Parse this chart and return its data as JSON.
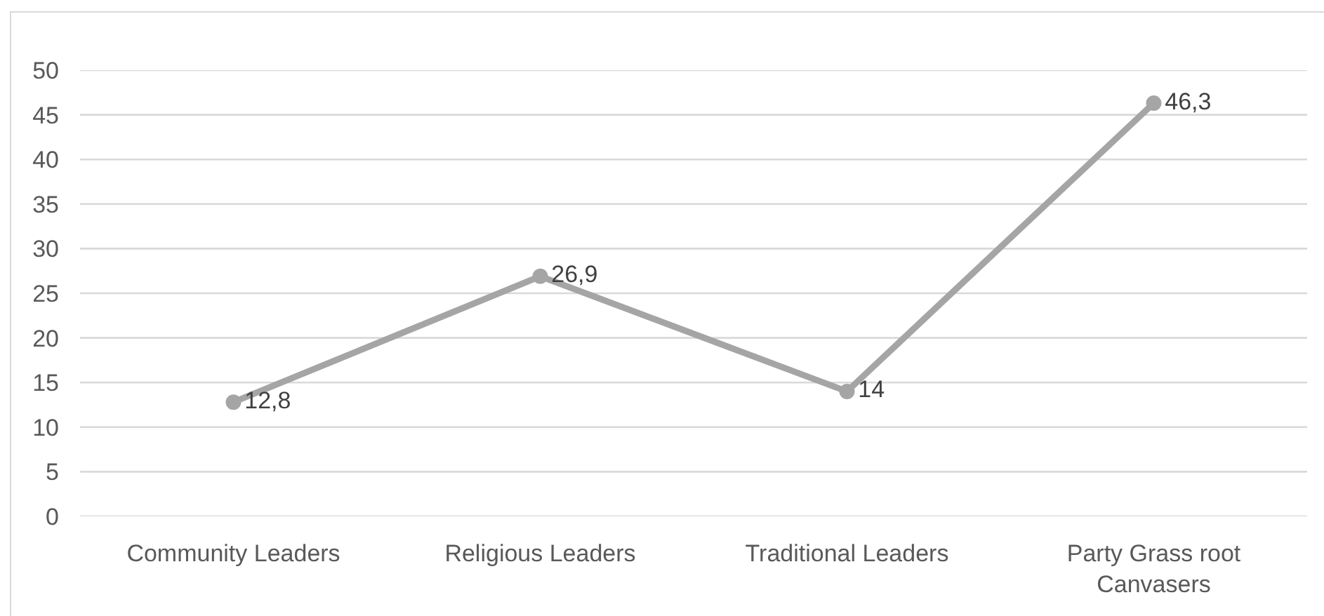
{
  "chart_data": {
    "type": "line",
    "categories": [
      "Community Leaders",
      "Religious Leaders",
      "Traditional Leaders",
      "Party Grass root Canvasers"
    ],
    "values": [
      12.8,
      26.9,
      14,
      46.3
    ],
    "value_labels": [
      "12,8",
      "26,9",
      "14",
      "46,3"
    ],
    "color": "#a5a5a5",
    "ylim": [
      0,
      50
    ],
    "yticks": [
      0,
      5,
      10,
      15,
      20,
      25,
      30,
      35,
      40,
      45,
      50
    ],
    "grid": "y",
    "marker": "circle"
  }
}
